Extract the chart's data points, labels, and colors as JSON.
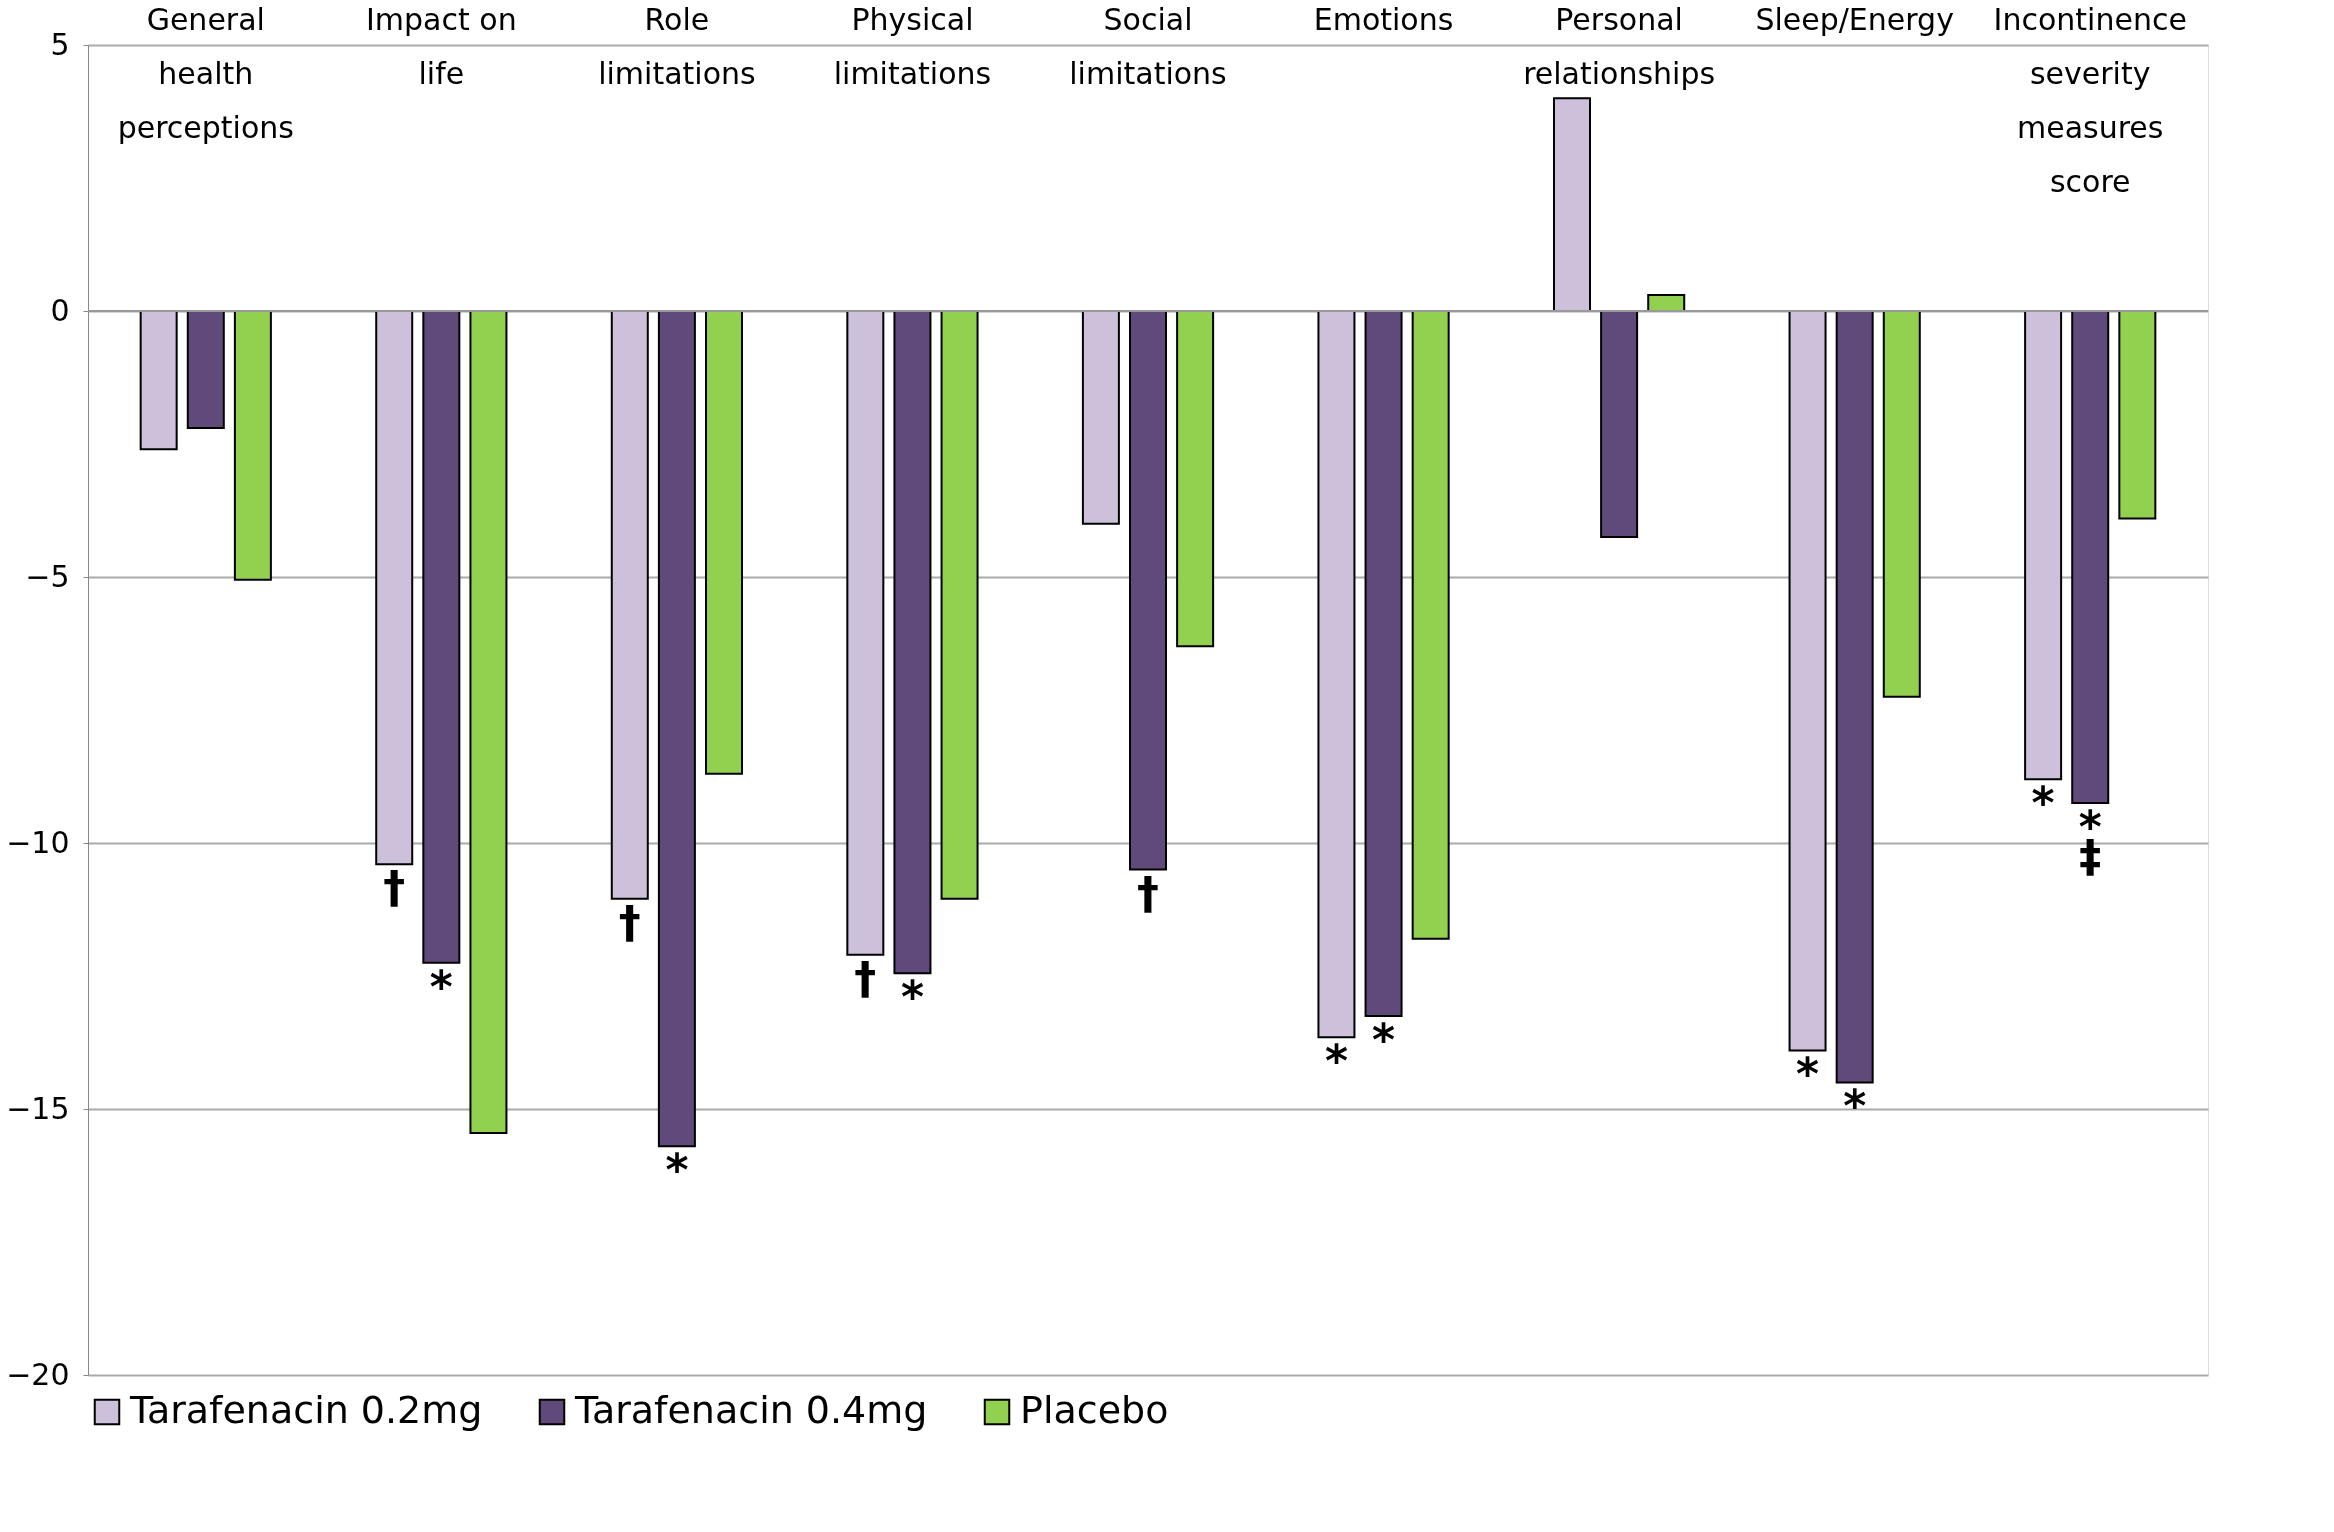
{
  "chart_data": {
    "type": "bar",
    "categories": [
      "General health perceptions",
      "Impact on life",
      "Role limitations",
      "Physical limitations",
      "Social limitations",
      "Emotions",
      "Personal relationships",
      "Sleep/Energy",
      "Incontinence severity measures score"
    ],
    "series": [
      {
        "name": "Tarafenacin 0.2mg",
        "color": "#ccc0da",
        "values": [
          -2.6,
          -10.4,
          -11.05,
          -12.1,
          -4.0,
          -13.65,
          4.0,
          -13.9,
          -8.8
        ]
      },
      {
        "name": "Tarafenacin 0.4mg",
        "color": "#604a7b",
        "values": [
          -2.2,
          -12.25,
          -15.7,
          -12.45,
          -10.5,
          -13.25,
          -4.25,
          -14.5,
          -9.25
        ]
      },
      {
        "name": "Placebo",
        "color": "#92d050",
        "values": [
          -5.05,
          -15.45,
          -8.7,
          -11.05,
          -6.3,
          -11.8,
          0.3,
          -7.25,
          -3.9
        ]
      }
    ],
    "ylim": [
      -20,
      5
    ],
    "yticks": [
      -20,
      -15,
      -10,
      -5,
      0,
      5
    ],
    "grid": "y",
    "legend": "bottom",
    "annotations": [
      {
        "text": "†",
        "y": -10.4
      },
      {
        "text": "*",
        "x": "Impact on life",
        "y": -12.25
      },
      {
        "text": "†",
        "y": -11.05
      },
      {
        "text": "*",
        "x": "Role limitations",
        "y": -15.7
      },
      {
        "text": "†",
        "y": -12.1
      },
      {
        "text": "*",
        "x": "Physical limitations",
        "y": -12.45
      },
      {
        "text": "†",
        "x": "Social limitations",
        "y": -10.5
      },
      {
        "text": "*",
        "y": -13.65
      },
      {
        "text": "*",
        "x": "Emotions",
        "y": -13.25
      },
      {
        "text": "*",
        "y": -13.9
      },
      {
        "text": "*",
        "x": "Sleep/Energy",
        "y": -14.5
      },
      {
        "text": "*",
        "y": -8.8
      },
      {
        "text": "*",
        "x": "Incontinence severity measures score",
        "y": -9.25
      },
      {
        "text": "‡",
        "x": "Incontinence severity measures score",
        "y": -9.25
      }
    ]
  }
}
